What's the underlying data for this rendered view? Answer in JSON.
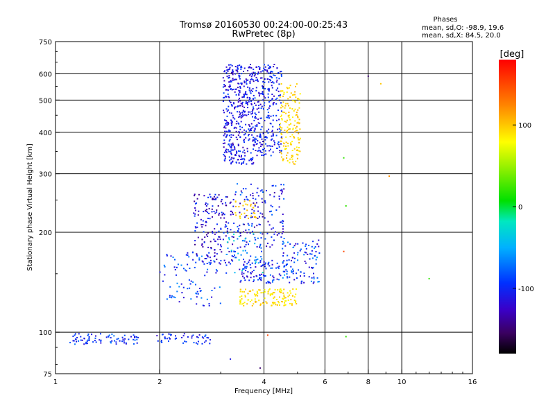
{
  "chart_data": {
    "type": "scatter",
    "title": "Tromsø 20160530 00:24:00-00:25:43",
    "subtitle": "RwPretec (8p)",
    "xlabel": "Frequency [MHz]",
    "ylabel": "Stationary phase Virtual Height [km]",
    "x_scale": "log",
    "y_scale": "log",
    "xlim": [
      1,
      16
    ],
    "ylim": [
      75,
      750
    ],
    "x_ticks": [
      1,
      2,
      4,
      6,
      8,
      10,
      16
    ],
    "y_ticks": [
      75,
      100,
      200,
      300,
      400,
      500,
      600,
      750
    ],
    "grid": true,
    "stats": {
      "heading": "Phases",
      "line_o": "mean, sd,O: -98.9, 19.6",
      "line_x": "mean, sd,X:  84.5, 20.0"
    },
    "colorbar": {
      "label": "[deg]",
      "range": [
        -180,
        180
      ],
      "ticks": [
        100,
        0,
        -100
      ],
      "tick_labels": [
        "100",
        "0",
        "-100"
      ]
    },
    "clusters": [
      {
        "xr": [
          1.1,
          1.75
        ],
        "yr": [
          92,
          99
        ],
        "n": 80,
        "phase": -95,
        "spread": 25
      },
      {
        "xr": [
          1.95,
          2.8
        ],
        "yr": [
          92,
          99
        ],
        "n": 50,
        "phase": -100,
        "spread": 25
      },
      {
        "xr": [
          3.05,
          3.75
        ],
        "yr": [
          320,
          640
        ],
        "n": 420,
        "phase": -110,
        "spread": 25
      },
      {
        "xr": [
          3.75,
          4.5
        ],
        "yr": [
          340,
          640
        ],
        "n": 260,
        "phase": -105,
        "spread": 25
      },
      {
        "xr": [
          4.45,
          5.1
        ],
        "yr": [
          320,
          560
        ],
        "n": 160,
        "phase": 95,
        "spread": 15
      },
      {
        "xr": [
          2.5,
          3.3
        ],
        "yr": [
          160,
          260
        ],
        "n": 180,
        "phase": -115,
        "spread": 30
      },
      {
        "xr": [
          2.0,
          3.0
        ],
        "yr": [
          120,
          175
        ],
        "n": 90,
        "phase": -90,
        "spread": 30
      },
      {
        "xr": [
          3.3,
          4.6
        ],
        "yr": [
          180,
          280
        ],
        "n": 140,
        "phase": -105,
        "spread": 35
      },
      {
        "xr": [
          3.3,
          3.8
        ],
        "yr": [
          220,
          250
        ],
        "n": 30,
        "phase": 100,
        "spread": 10
      },
      {
        "xr": [
          3.4,
          4.3
        ],
        "yr": [
          120,
          135
        ],
        "n": 70,
        "phase": 90,
        "spread": 15
      },
      {
        "xr": [
          4.2,
          5.0
        ],
        "yr": [
          120,
          135
        ],
        "n": 60,
        "phase": 90,
        "spread": 15
      },
      {
        "xr": [
          3.4,
          4.6
        ],
        "yr": [
          140,
          165
        ],
        "n": 90,
        "phase": -100,
        "spread": 30
      },
      {
        "xr": [
          4.5,
          5.8
        ],
        "yr": [
          140,
          190
        ],
        "n": 110,
        "phase": -90,
        "spread": 40
      },
      {
        "xr": [
          3.1,
          4.0
        ],
        "yr": [
          150,
          200
        ],
        "n": 60,
        "phase": -60,
        "spread": 40
      }
    ],
    "outliers": [
      {
        "x": 6.8,
        "y": 335,
        "phase": 20
      },
      {
        "x": 6.9,
        "y": 240,
        "phase": 20
      },
      {
        "x": 6.8,
        "y": 175,
        "phase": 150
      },
      {
        "x": 8.0,
        "y": 590,
        "phase": -150
      },
      {
        "x": 8.7,
        "y": 560,
        "phase": 100
      },
      {
        "x": 9.2,
        "y": 295,
        "phase": 120
      },
      {
        "x": 12.0,
        "y": 145,
        "phase": 20
      },
      {
        "x": 6.9,
        "y": 97,
        "phase": 20
      },
      {
        "x": 3.2,
        "y": 83,
        "phase": -110
      },
      {
        "x": 3.9,
        "y": 78,
        "phase": -150
      },
      {
        "x": 4.1,
        "y": 98,
        "phase": 150
      }
    ]
  }
}
